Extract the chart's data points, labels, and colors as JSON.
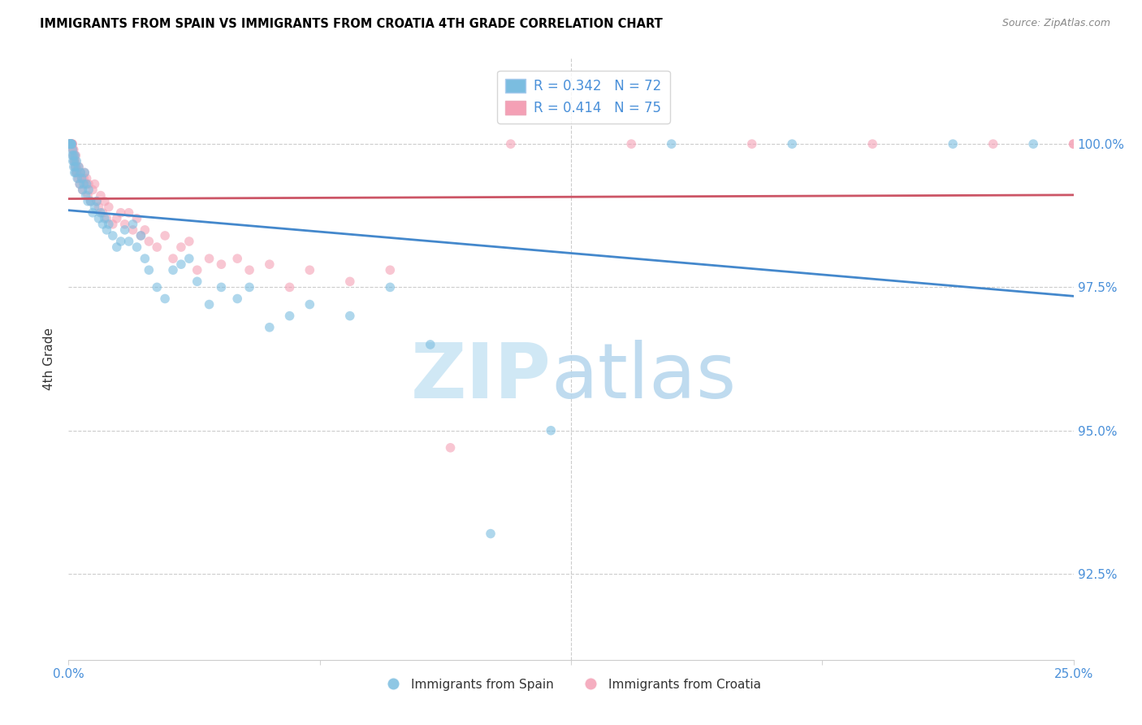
{
  "title": "IMMIGRANTS FROM SPAIN VS IMMIGRANTS FROM CROATIA 4TH GRADE CORRELATION CHART",
  "source": "Source: ZipAtlas.com",
  "ylabel": "4th Grade",
  "yticks": [
    92.5,
    95.0,
    97.5,
    100.0
  ],
  "ytick_labels": [
    "92.5%",
    "95.0%",
    "97.5%",
    "100.0%"
  ],
  "xlim": [
    0.0,
    25.0
  ],
  "ylim": [
    91.0,
    101.5
  ],
  "legend_blue_r": "R = 0.342",
  "legend_blue_n": "N = 72",
  "legend_pink_r": "R = 0.414",
  "legend_pink_n": "N = 75",
  "blue_color": "#7bbde0",
  "pink_color": "#f4a0b5",
  "blue_line_color": "#4488cc",
  "pink_line_color": "#cc5566",
  "scatter_alpha": 0.6,
  "marker_size": 70,
  "watermark_zip_color": "#d0e8f5",
  "watermark_atlas_color": "#b8d8ee",
  "spain_x": [
    0.02,
    0.03,
    0.04,
    0.05,
    0.06,
    0.07,
    0.08,
    0.09,
    0.1,
    0.11,
    0.12,
    0.13,
    0.14,
    0.15,
    0.16,
    0.17,
    0.18,
    0.2,
    0.22,
    0.25,
    0.28,
    0.3,
    0.33,
    0.35,
    0.38,
    0.4,
    0.43,
    0.45,
    0.48,
    0.5,
    0.55,
    0.6,
    0.65,
    0.7,
    0.75,
    0.8,
    0.85,
    0.9,
    0.95,
    1.0,
    1.1,
    1.2,
    1.3,
    1.4,
    1.5,
    1.6,
    1.7,
    1.8,
    1.9,
    2.0,
    2.2,
    2.4,
    2.6,
    2.8,
    3.0,
    3.2,
    3.5,
    3.8,
    4.2,
    4.5,
    5.0,
    5.5,
    6.0,
    7.0,
    8.0,
    9.0,
    10.5,
    12.0,
    15.0,
    18.0,
    22.0,
    24.0
  ],
  "spain_y": [
    100.0,
    100.0,
    100.0,
    100.0,
    100.0,
    100.0,
    100.0,
    99.8,
    99.9,
    99.7,
    99.8,
    99.6,
    99.7,
    99.5,
    99.8,
    99.6,
    99.5,
    99.7,
    99.4,
    99.6,
    99.3,
    99.5,
    99.4,
    99.2,
    99.3,
    99.5,
    99.1,
    99.3,
    99.0,
    99.2,
    99.0,
    98.8,
    98.9,
    99.0,
    98.7,
    98.8,
    98.6,
    98.7,
    98.5,
    98.6,
    98.4,
    98.2,
    98.3,
    98.5,
    98.3,
    98.6,
    98.2,
    98.4,
    98.0,
    97.8,
    97.5,
    97.3,
    97.8,
    97.9,
    98.0,
    97.6,
    97.2,
    97.5,
    97.3,
    97.5,
    96.8,
    97.0,
    97.2,
    97.0,
    97.5,
    96.5,
    93.2,
    95.0,
    100.0,
    100.0,
    100.0,
    100.0
  ],
  "croatia_x": [
    0.02,
    0.03,
    0.04,
    0.05,
    0.06,
    0.07,
    0.08,
    0.09,
    0.1,
    0.11,
    0.12,
    0.13,
    0.14,
    0.15,
    0.16,
    0.17,
    0.18,
    0.19,
    0.2,
    0.22,
    0.24,
    0.26,
    0.28,
    0.3,
    0.33,
    0.35,
    0.38,
    0.4,
    0.43,
    0.45,
    0.48,
    0.5,
    0.55,
    0.6,
    0.65,
    0.7,
    0.75,
    0.8,
    0.85,
    0.9,
    0.95,
    1.0,
    1.1,
    1.2,
    1.3,
    1.4,
    1.5,
    1.6,
    1.7,
    1.8,
    1.9,
    2.0,
    2.2,
    2.4,
    2.6,
    2.8,
    3.0,
    3.2,
    3.5,
    3.8,
    4.2,
    4.5,
    5.0,
    5.5,
    6.0,
    7.0,
    8.0,
    9.5,
    11.0,
    14.0,
    17.0,
    20.0,
    23.0,
    25.0,
    25.0
  ],
  "croatia_y": [
    100.0,
    100.0,
    100.0,
    100.0,
    100.0,
    100.0,
    100.0,
    100.0,
    100.0,
    99.9,
    99.8,
    99.9,
    99.7,
    99.8,
    99.6,
    99.7,
    99.8,
    99.5,
    99.6,
    99.5,
    99.4,
    99.6,
    99.3,
    99.5,
    99.4,
    99.2,
    99.4,
    99.5,
    99.3,
    99.4,
    99.1,
    99.3,
    99.0,
    99.2,
    99.3,
    99.0,
    98.9,
    99.1,
    98.8,
    99.0,
    98.7,
    98.9,
    98.6,
    98.7,
    98.8,
    98.6,
    98.8,
    98.5,
    98.7,
    98.4,
    98.5,
    98.3,
    98.2,
    98.4,
    98.0,
    98.2,
    98.3,
    97.8,
    98.0,
    97.9,
    98.0,
    97.8,
    97.9,
    97.5,
    97.8,
    97.6,
    97.8,
    94.7,
    100.0,
    100.0,
    100.0,
    100.0,
    100.0,
    100.0,
    100.0
  ]
}
